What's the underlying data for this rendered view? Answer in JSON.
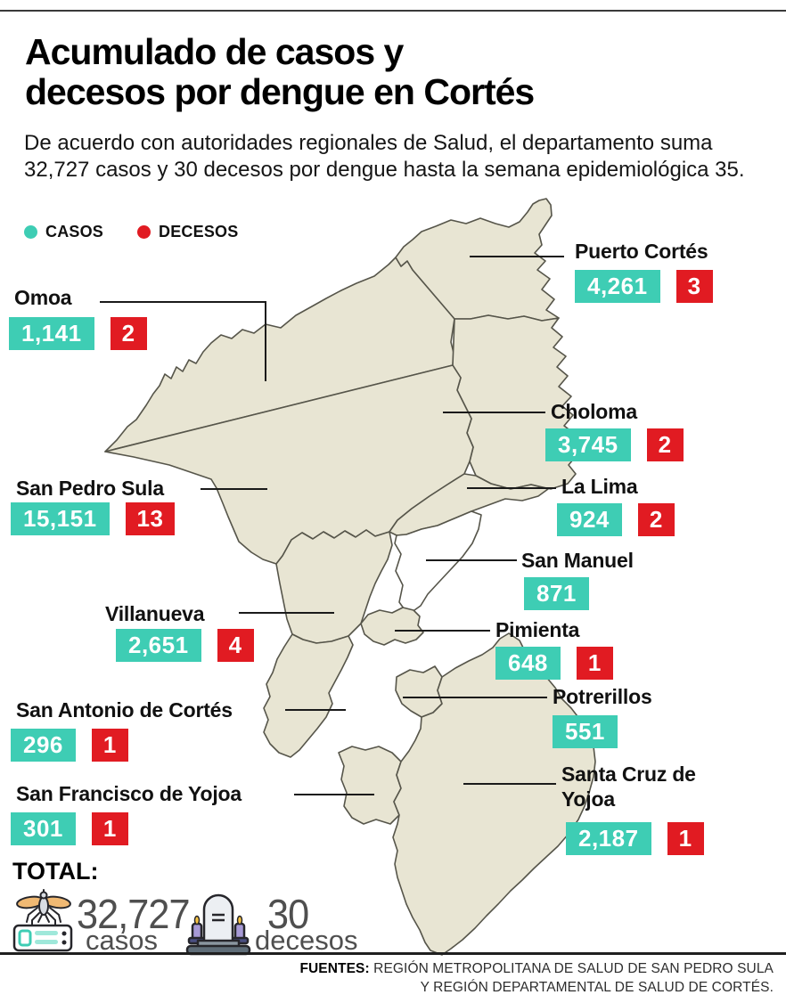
{
  "title_line1": "Acumulado de casos y",
  "title_line2": "decesos por dengue en Cortés",
  "subtitle": "De acuerdo con autoridades regionales de Salud, el departamento suma 32,727 casos y 30 decesos por dengue hasta la semana epidemiológica 35.",
  "colors": {
    "casos": "#3ecdb4",
    "decesos": "#e11b22",
    "map_fill": "#e8e5d3",
    "map_stroke": "#56554a"
  },
  "legend": {
    "items": [
      {
        "label": "CASOS",
        "color": "#3ecdb4"
      },
      {
        "label": "DECESOS",
        "color": "#e11b22"
      }
    ]
  },
  "municipalities": [
    {
      "id": "puerto-cortes",
      "name": "Puerto Cortés",
      "casos": "4,261",
      "decesos": "3"
    },
    {
      "id": "omoa",
      "name": "Omoa",
      "casos": "1,141",
      "decesos": "2"
    },
    {
      "id": "choloma",
      "name": "Choloma",
      "casos": "3,745",
      "decesos": "2"
    },
    {
      "id": "la-lima",
      "name": "La Lima",
      "casos": "924",
      "decesos": "2"
    },
    {
      "id": "san-pedro-sula",
      "name": "San Pedro Sula",
      "casos": "15,151",
      "decesos": "13"
    },
    {
      "id": "san-manuel",
      "name": "San Manuel",
      "casos": "871",
      "decesos": null
    },
    {
      "id": "villanueva",
      "name": "Villanueva",
      "casos": "2,651",
      "decesos": "4"
    },
    {
      "id": "pimienta",
      "name": "Pimienta",
      "casos": "648",
      "decesos": "1"
    },
    {
      "id": "san-antonio",
      "name": "San Antonio de Cortés",
      "casos": "296",
      "decesos": "1"
    },
    {
      "id": "potrerillos",
      "name": "Potrerillos",
      "casos": "551",
      "decesos": null
    },
    {
      "id": "san-francisco",
      "name": "San Francisco de Yojoa",
      "casos": "301",
      "decesos": "1"
    },
    {
      "id": "santa-cruz",
      "name": "Santa Cruz de Yojoa",
      "casos": "2,187",
      "decesos": "1"
    }
  ],
  "total": {
    "label": "TOTAL:",
    "casos_value": "32,727",
    "casos_label": "casos",
    "decesos_value": "30",
    "decesos_label": "decesos"
  },
  "fuentes": {
    "prefix": "FUENTES:",
    "line1": " REGIÓN METROPOLITANA DE SALUD DE SAN PEDRO SULA",
    "line2": "Y REGIÓN DEPARTAMENTAL DE SALUD DE CORTÉS."
  }
}
